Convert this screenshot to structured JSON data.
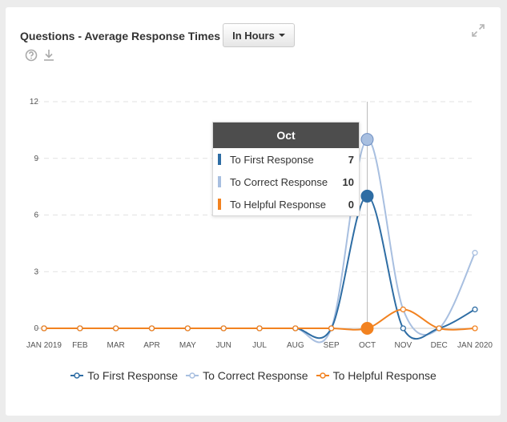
{
  "widget": {
    "title": "Questions - Average Response Times",
    "unit_button": "In Hours"
  },
  "icons": {
    "help": "help-circle-icon",
    "download": "download-icon",
    "expand": "expand-icon"
  },
  "chart_data": {
    "type": "line",
    "title": "",
    "xlabel": "",
    "ylabel": "",
    "categories": [
      "JAN 2019",
      "FEB",
      "MAR",
      "APR",
      "MAY",
      "JUN",
      "JUL",
      "AUG",
      "SEP",
      "OCT",
      "NOV",
      "DEC",
      "JAN 2020"
    ],
    "yticks": [
      "0",
      "3",
      "6",
      "9",
      "12"
    ],
    "ylim": [
      0,
      12
    ],
    "grid": true,
    "legend_position": "bottom",
    "series": [
      {
        "name": "To First Response",
        "color": "#2e6da4",
        "values": [
          0,
          0,
          0,
          0,
          0,
          0,
          0,
          0,
          0,
          7,
          0,
          0,
          1
        ]
      },
      {
        "name": "To Correct Response",
        "color": "#a8bfe0",
        "values": [
          0,
          0,
          0,
          0,
          0,
          0,
          0,
          0,
          0,
          10,
          1,
          0,
          4
        ]
      },
      {
        "name": "To Helpful Response",
        "color": "#f28220",
        "values": [
          0,
          0,
          0,
          0,
          0,
          0,
          0,
          0,
          0,
          0,
          1,
          0,
          0
        ]
      }
    ],
    "highlight_index": 9
  },
  "tooltip": {
    "title": "Oct",
    "rows": [
      {
        "label": "To First Response",
        "value": "7",
        "color": "#2e6da4"
      },
      {
        "label": "To Correct Response",
        "value": "10",
        "color": "#a8bfe0"
      },
      {
        "label": "To Helpful Response",
        "value": "0",
        "color": "#f28220"
      }
    ]
  }
}
